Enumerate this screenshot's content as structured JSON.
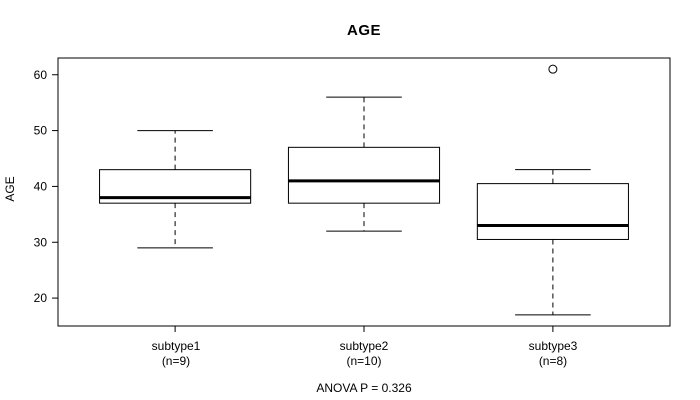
{
  "title": "AGE",
  "chart_data": {
    "type": "boxplot",
    "title": "AGE",
    "xlabel": "",
    "ylabel": "AGE",
    "ylim": [
      15,
      63
    ],
    "yticks": [
      20,
      30,
      40,
      50,
      60
    ],
    "grid": false,
    "legend": null,
    "groups": [
      {
        "label": "subtype1",
        "sublabel": "(n=9)",
        "n": 9,
        "whisker_low": 29,
        "q1": 37,
        "median": 38,
        "q3": 43,
        "whisker_high": 50,
        "outliers": []
      },
      {
        "label": "subtype2",
        "sublabel": "(n=10)",
        "n": 10,
        "whisker_low": 32,
        "q1": 37,
        "median": 41,
        "q3": 47,
        "whisker_high": 56,
        "outliers": []
      },
      {
        "label": "subtype3",
        "sublabel": "(n=8)",
        "n": 8,
        "whisker_low": 17,
        "q1": 30.5,
        "median": 33,
        "q3": 40.5,
        "whisker_high": 43,
        "outliers": [
          61
        ]
      }
    ],
    "annotation": "ANOVA P = 0.326",
    "colors": {
      "line": "#000000",
      "box_fill": "#ffffff",
      "text": "#000000",
      "background": "#ffffff"
    }
  }
}
